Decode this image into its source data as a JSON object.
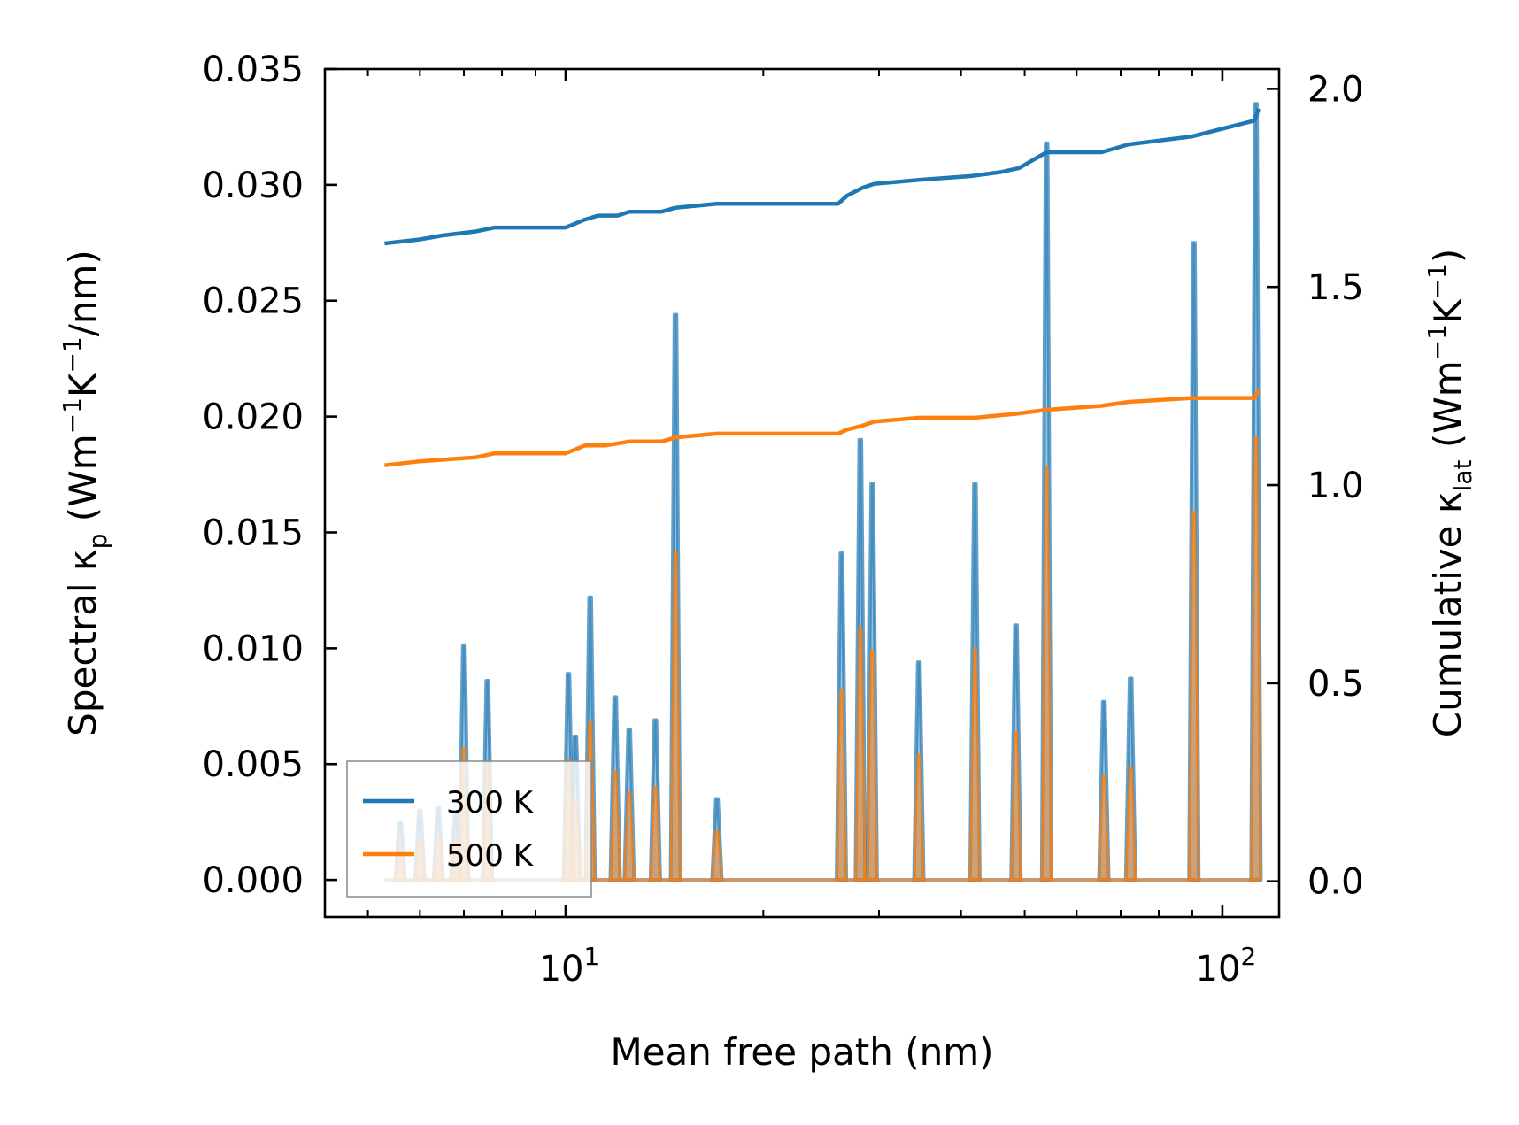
{
  "chart_data": {
    "type": "line",
    "xscale": "log",
    "xlim": [
      4.3,
      122
    ],
    "xlabel": "Mean free path (nm)",
    "ylabel_left": {
      "main": "Spectral κ",
      "sub": "p",
      "unit_open": " (Wm",
      "sup1": "−1",
      "mid": "K",
      "sup2": "−1",
      "unit_close": "/nm)"
    },
    "ylabel_right": {
      "main": "Cumulative κ",
      "sub": "lat",
      "unit_open": " (Wm",
      "sup1": "−1",
      "mid": "K",
      "sup2": "−1",
      "unit_close": ")"
    },
    "ylim_left": [
      -0.0016,
      0.035
    ],
    "ylim_right": [
      -0.09,
      2.05
    ],
    "xticks": [
      {
        "value": 10,
        "base": "10",
        "exp": "1"
      },
      {
        "value": 100,
        "base": "10",
        "exp": "2"
      }
    ],
    "yticks_left": [
      "0.000",
      "0.005",
      "0.010",
      "0.015",
      "0.020",
      "0.025",
      "0.030",
      "0.035"
    ],
    "yticks_right": [
      "0.0",
      "0.5",
      "1.0",
      "1.5",
      "2.0"
    ],
    "legend": {
      "position": "lower-left",
      "entries": [
        "300 K",
        "500 K"
      ]
    },
    "series": [
      {
        "name": "300 K",
        "color": "#1f77b4",
        "spectral": [
          [
            5.6,
            0.0025
          ],
          [
            6.0,
            0.003
          ],
          [
            6.4,
            0.0031
          ],
          [
            6.8,
            0.0029
          ],
          [
            7.0,
            0.0101
          ],
          [
            7.6,
            0.0086
          ],
          [
            10.1,
            0.0089
          ],
          [
            10.35,
            0.0062
          ],
          [
            10.9,
            0.0122
          ],
          [
            11.9,
            0.0079
          ],
          [
            12.5,
            0.0065
          ],
          [
            13.7,
            0.0069
          ],
          [
            14.7,
            0.0244
          ],
          [
            17.0,
            0.0035
          ],
          [
            26.3,
            0.0141
          ],
          [
            28.1,
            0.019
          ],
          [
            29.3,
            0.0171
          ],
          [
            34.5,
            0.0094
          ],
          [
            42.0,
            0.0171
          ],
          [
            48.5,
            0.011
          ],
          [
            54.0,
            0.0318
          ],
          [
            66.0,
            0.0077
          ],
          [
            72.5,
            0.0087
          ],
          [
            90.5,
            0.0275
          ],
          [
            112.5,
            0.0335
          ]
        ],
        "cumulative": [
          [
            5.3,
            1.61
          ],
          [
            6.0,
            1.62
          ],
          [
            6.5,
            1.63
          ],
          [
            7.3,
            1.64
          ],
          [
            7.8,
            1.65
          ],
          [
            10.0,
            1.65
          ],
          [
            10.7,
            1.67
          ],
          [
            11.2,
            1.68
          ],
          [
            12.0,
            1.68
          ],
          [
            12.5,
            1.69
          ],
          [
            14.0,
            1.69
          ],
          [
            14.7,
            1.7
          ],
          [
            17.0,
            1.71
          ],
          [
            26.0,
            1.71
          ],
          [
            26.8,
            1.73
          ],
          [
            28.3,
            1.75
          ],
          [
            29.5,
            1.76
          ],
          [
            34.5,
            1.77
          ],
          [
            41.5,
            1.78
          ],
          [
            46.0,
            1.79
          ],
          [
            49.0,
            1.8
          ],
          [
            54.0,
            1.84
          ],
          [
            65.5,
            1.84
          ],
          [
            72.0,
            1.86
          ],
          [
            90.0,
            1.88
          ],
          [
            112.0,
            1.92
          ],
          [
            113.5,
            1.95
          ]
        ]
      },
      {
        "name": "500 K",
        "color": "#ff7f0e",
        "spectral": [
          [
            5.6,
            0.0015
          ],
          [
            6.0,
            0.0018
          ],
          [
            6.4,
            0.0019
          ],
          [
            6.8,
            0.0018
          ],
          [
            7.0,
            0.0057
          ],
          [
            7.6,
            0.005
          ],
          [
            10.1,
            0.0052
          ],
          [
            10.35,
            0.0036
          ],
          [
            10.9,
            0.0068
          ],
          [
            11.9,
            0.0047
          ],
          [
            12.5,
            0.0038
          ],
          [
            13.7,
            0.004
          ],
          [
            14.7,
            0.0142
          ],
          [
            17.0,
            0.0021
          ],
          [
            26.3,
            0.0082
          ],
          [
            28.1,
            0.0109
          ],
          [
            29.3,
            0.0099
          ],
          [
            34.5,
            0.0054
          ],
          [
            42.0,
            0.01
          ],
          [
            48.5,
            0.0064
          ],
          [
            54.0,
            0.0178
          ],
          [
            66.0,
            0.0045
          ],
          [
            72.5,
            0.0049
          ],
          [
            90.5,
            0.0159
          ],
          [
            112.5,
            0.0191
          ]
        ],
        "cumulative": [
          [
            5.3,
            1.05
          ],
          [
            6.0,
            1.06
          ],
          [
            7.3,
            1.07
          ],
          [
            7.8,
            1.08
          ],
          [
            10.0,
            1.08
          ],
          [
            10.7,
            1.1
          ],
          [
            11.5,
            1.1
          ],
          [
            12.5,
            1.11
          ],
          [
            14.0,
            1.11
          ],
          [
            14.7,
            1.12
          ],
          [
            17.0,
            1.13
          ],
          [
            26.0,
            1.13
          ],
          [
            26.8,
            1.14
          ],
          [
            28.3,
            1.15
          ],
          [
            29.5,
            1.16
          ],
          [
            34.5,
            1.17
          ],
          [
            42.0,
            1.17
          ],
          [
            48.5,
            1.18
          ],
          [
            54.0,
            1.19
          ],
          [
            65.5,
            1.2
          ],
          [
            72.0,
            1.21
          ],
          [
            90.0,
            1.22
          ],
          [
            112.0,
            1.22
          ],
          [
            113.5,
            1.24
          ]
        ]
      }
    ]
  }
}
